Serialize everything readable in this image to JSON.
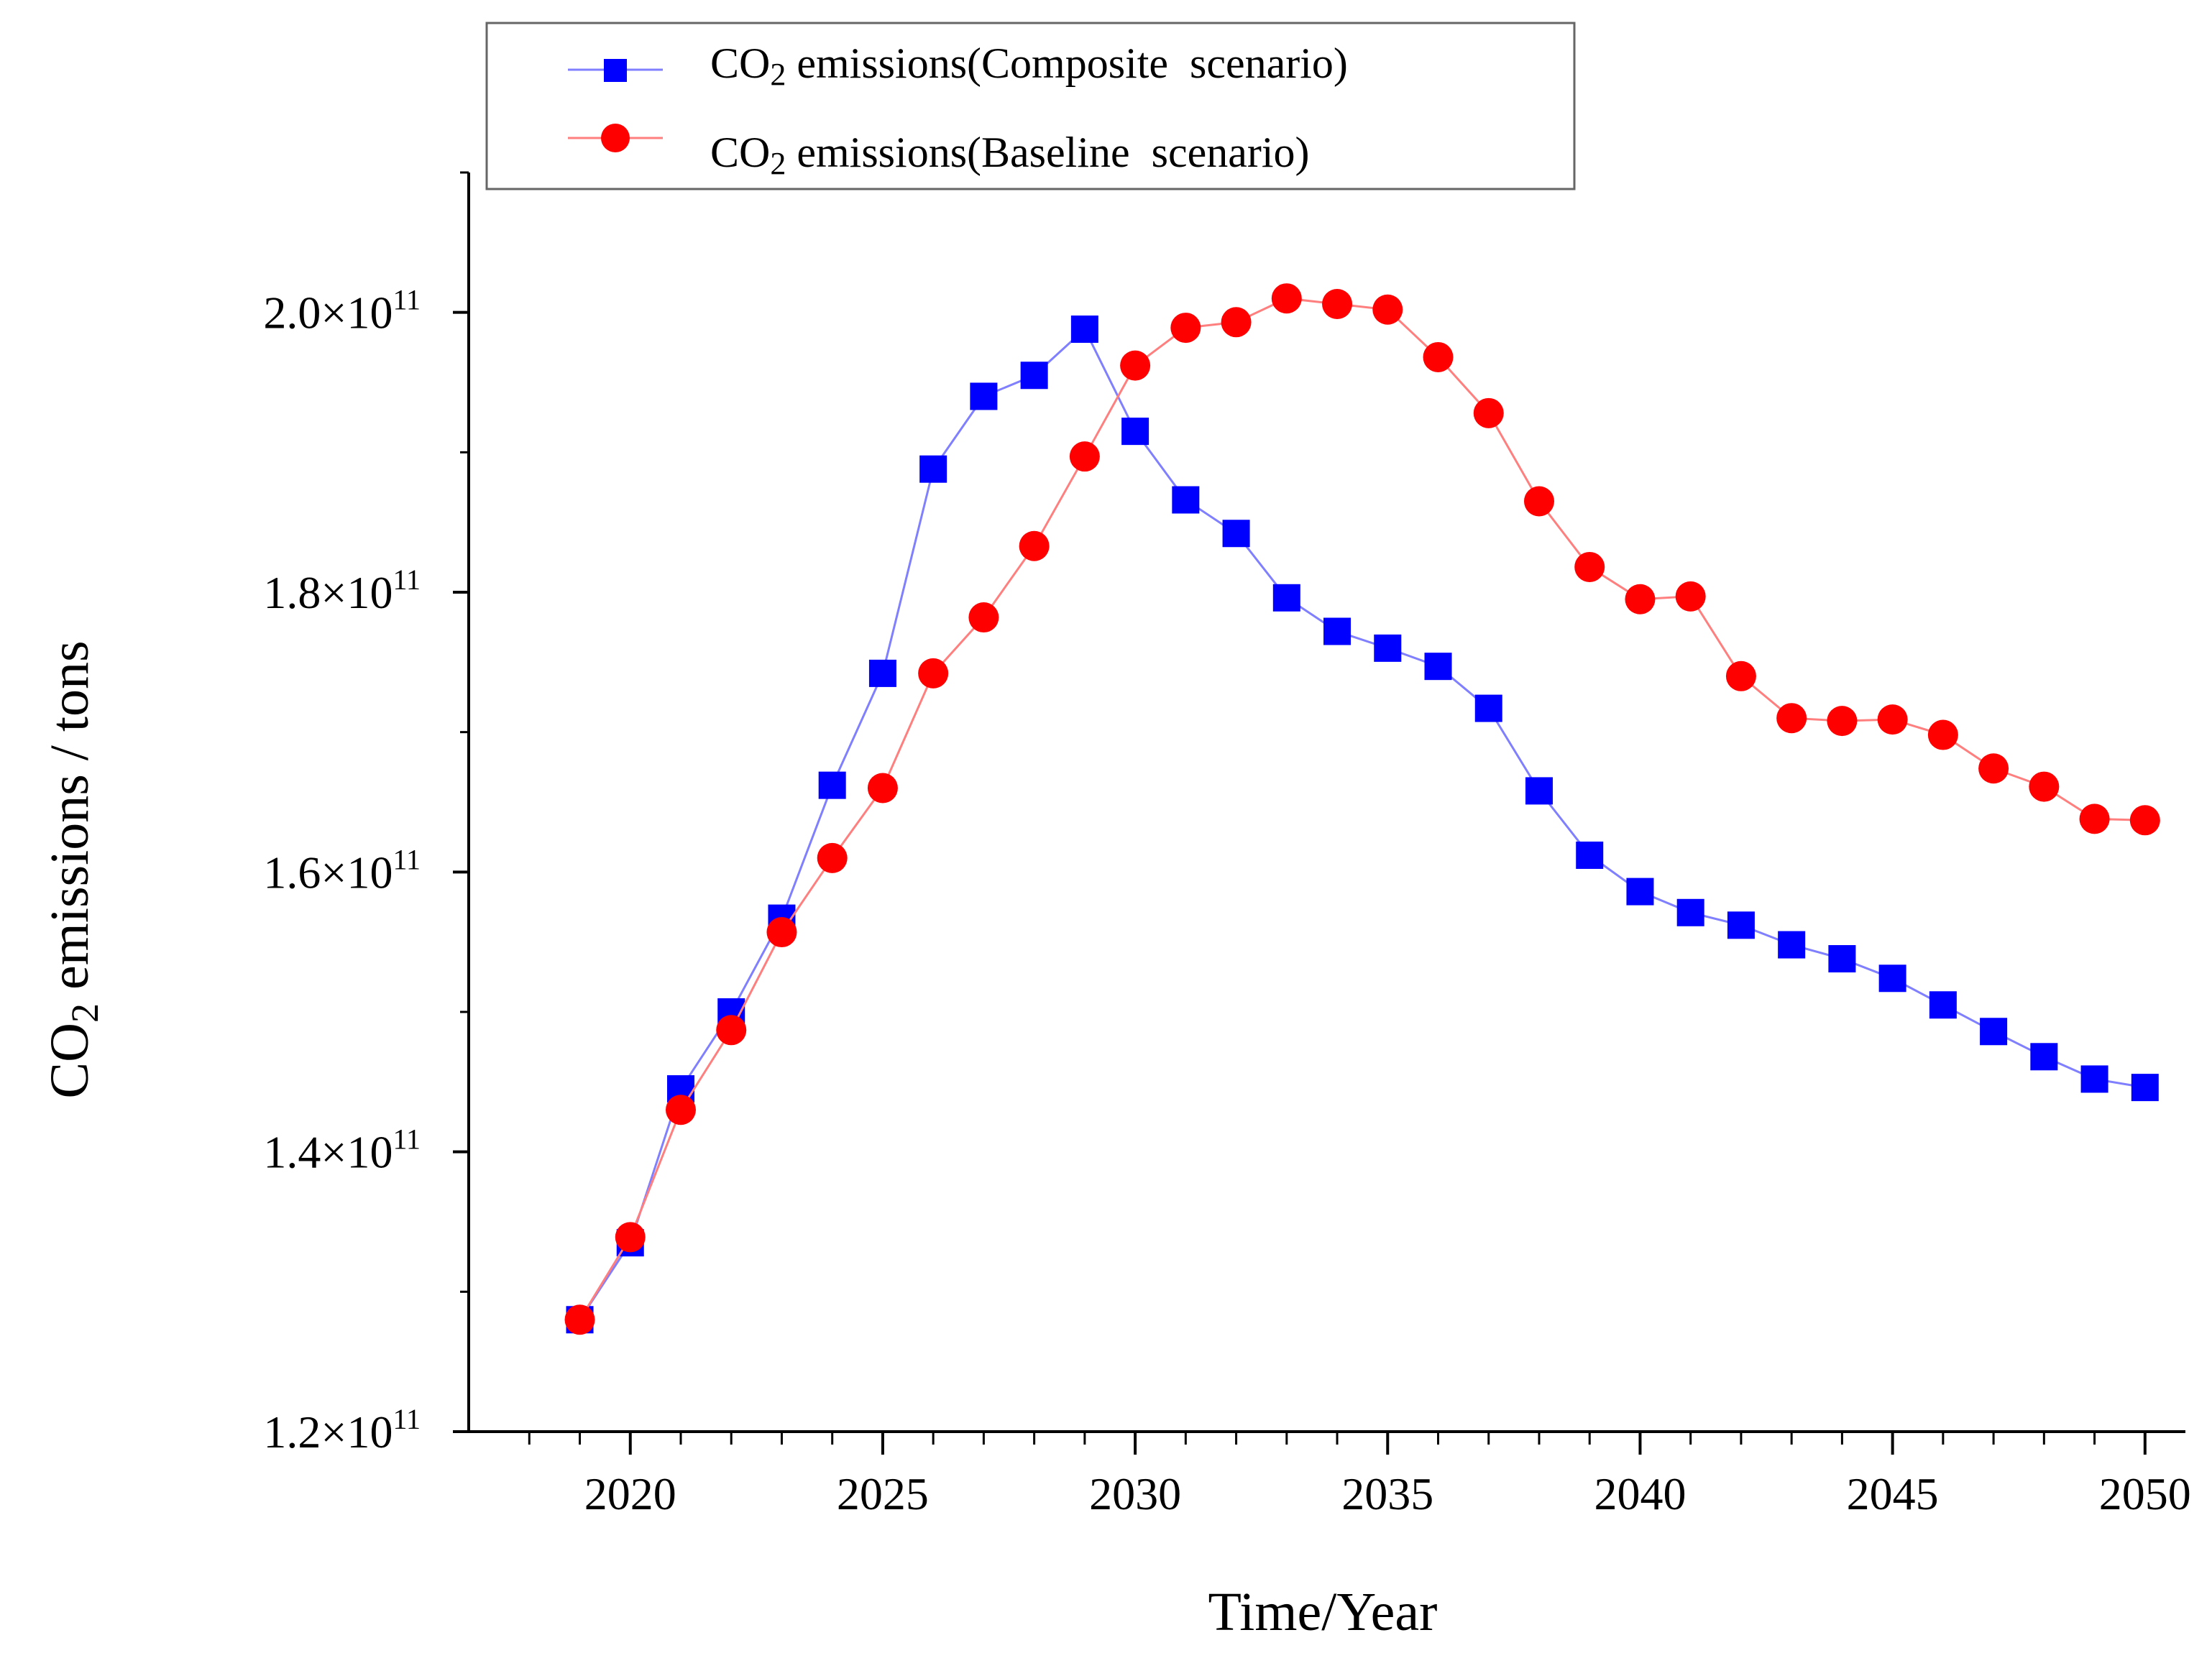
{
  "chart_data": {
    "type": "line",
    "title": "",
    "xlabel": "Time/Year",
    "ylabel_prefix": "CO",
    "ylabel_subscript": "2",
    "ylabel_suffix": " emissions / tons",
    "xlim": [
      2016.8,
      2050.8
    ],
    "ylim": [
      120000000000.0,
      210000000000.0
    ],
    "x_major_ticks": [
      2020,
      2025,
      2030,
      2035,
      2040,
      2045,
      2050
    ],
    "x_minor_ticks": [
      2018,
      2019,
      2021,
      2022,
      2023,
      2024,
      2026,
      2027,
      2028,
      2029,
      2031,
      2032,
      2033,
      2034,
      2036,
      2037,
      2038,
      2039,
      2041,
      2042,
      2043,
      2044,
      2046,
      2047,
      2048,
      2049
    ],
    "y_major_ticks": [
      {
        "value": 120000000000.0,
        "mantissa": "1.2",
        "exponent": "11"
      },
      {
        "value": 140000000000.0,
        "mantissa": "1.4",
        "exponent": "11"
      },
      {
        "value": 160000000000.0,
        "mantissa": "1.6",
        "exponent": "11"
      },
      {
        "value": 180000000000.0,
        "mantissa": "1.8",
        "exponent": "11"
      },
      {
        "value": 200000000000.0,
        "mantissa": "2.0",
        "exponent": "11"
      }
    ],
    "y_minor_ticks": [
      130000000000.0,
      150000000000.0,
      170000000000.0,
      190000000000.0,
      210000000000.0
    ],
    "grid": false,
    "legend_position": "top",
    "x": [
      2019,
      2020,
      2021,
      2022,
      2023,
      2024,
      2025,
      2026,
      2027,
      2028,
      2029,
      2030,
      2031,
      2032,
      2033,
      2034,
      2035,
      2036,
      2037,
      2038,
      2039,
      2040,
      2041,
      2042,
      2043,
      2044,
      2045,
      2046,
      2047,
      2048,
      2049,
      2050
    ],
    "series": [
      {
        "name_prefix": "CO",
        "name_subscript": "2",
        "name_suffix": " emissions(Composite  scenario)",
        "marker": "square",
        "line_color": "#7f7fff",
        "marker_color": "#0000ff",
        "values": [
          128000000000.0,
          133500000000.0,
          144500000000.0,
          150000000000.0,
          156700000000.0,
          166200000000.0,
          174200000000.0,
          188800000000.0,
          194000000000.0,
          195500000000.0,
          198800000000.0,
          191500000000.0,
          186600000000.0,
          184200000000.0,
          179600000000.0,
          177200000000.0,
          176000000000.0,
          174700000000.0,
          171700000000.0,
          165800000000.0,
          161200000000.0,
          158600000000.0,
          157100000000.0,
          156200000000.0,
          154800000000.0,
          153800000000.0,
          152400000000.0,
          150500000000.0,
          148600000000.0,
          146800000000.0,
          145200000000.0,
          144600000000.0
        ]
      },
      {
        "name_prefix": "CO",
        "name_subscript": "2",
        "name_suffix": " emissions(Baseline  scenario)",
        "marker": "circle",
        "line_color": "#ff7f7f",
        "marker_color": "#ff0000",
        "values": [
          128000000000.0,
          133900000000.0,
          143000000000.0,
          148700000000.0,
          155700000000.0,
          161000000000.0,
          166000000000.0,
          174200000000.0,
          178200000000.0,
          183300000000.0,
          189700000000.0,
          196200000000.0,
          198900000000.0,
          199300000000.0,
          201000000000.0,
          200600000000.0,
          200200000000.0,
          196800000000.0,
          192800000000.0,
          186500000000.0,
          181800000000.0,
          179500000000.0,
          179700000000.0,
          174000000000.0,
          171000000000.0,
          170800000000.0,
          170900000000.0,
          169800000000.0,
          167400000000.0,
          166100000000.0,
          163800000000.0,
          163700000000.0
        ]
      }
    ]
  }
}
